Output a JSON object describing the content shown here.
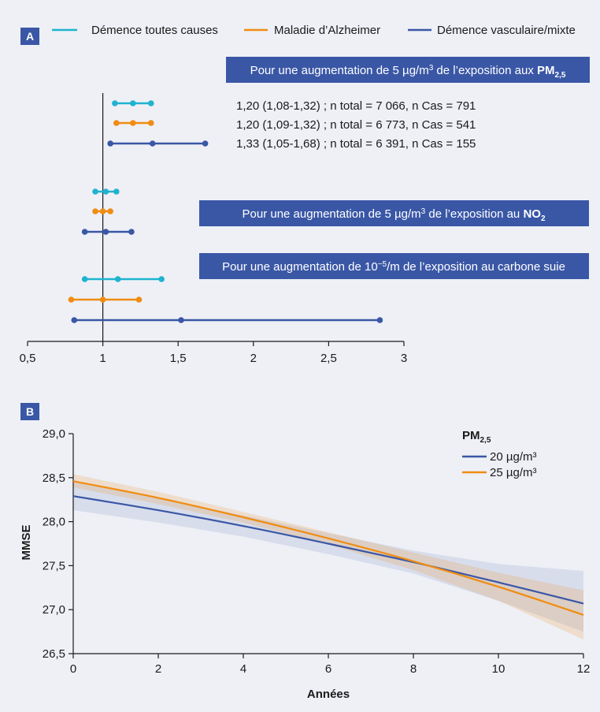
{
  "colors": {
    "all_cause": "#1fb3cf",
    "alzheimer": "#f08c12",
    "vascular": "#3a57a6",
    "banner": "#3a57a6",
    "badge": "#3a57a6",
    "background": "#eef0f6"
  },
  "panel_a": {
    "label": "A",
    "legend": [
      "Démence toutes causes",
      "Maladie d’Alzheimer",
      "Démence vasculaire/mixte"
    ],
    "banners": [
      {
        "prefix": "Pour une augmentation de 5 µg/m",
        "sup": "3",
        "mid": " de l’exposition aux ",
        "bold": "PM",
        "sub": "2,5"
      },
      {
        "prefix": "Pour une augmentation de 5 µg/m",
        "sup": "3",
        "mid": " de l’exposition au ",
        "bold": "NO",
        "sub": "2"
      },
      {
        "prefix": "Pour une augmentation de 10",
        "sup": "−5",
        "mid": "/m de l’exposition au carbone suie",
        "bold": "",
        "sub": ""
      }
    ],
    "annotations": [
      "1,20 (1,08-1,32) ;  n total = 7 066, n Cas = 791",
      "1,20 (1,09-1,32) ;  n total = 6 773, n Cas = 541",
      "1,33 (1,05-1,68) ;  n total = 6 391, n Cas = 155"
    ]
  },
  "panel_b": {
    "label": "B",
    "legend_title": "PM",
    "legend_title_sub": "2,5",
    "legend": [
      "20 µg/m³",
      "25 µg/m³"
    ],
    "xlabel": "Années",
    "ylabel": "MMSE"
  },
  "chart_data": [
    {
      "type": "forest",
      "xlim": [
        0.5,
        3
      ],
      "x_ticks": [
        "0,5",
        "1",
        "1,5",
        "2",
        "2,5",
        "3"
      ],
      "reference_line": 1,
      "groups": [
        {
          "exposure": "PM2,5",
          "rows": [
            {
              "series": "Démence toutes causes",
              "est": 1.2,
              "lo": 1.08,
              "hi": 1.32
            },
            {
              "series": "Maladie d’Alzheimer",
              "est": 1.2,
              "lo": 1.09,
              "hi": 1.32
            },
            {
              "series": "Démence vasculaire/mixte",
              "est": 1.33,
              "lo": 1.05,
              "hi": 1.68
            }
          ]
        },
        {
          "exposure": "NO2",
          "rows": [
            {
              "series": "Démence toutes causes",
              "est": 1.02,
              "lo": 0.95,
              "hi": 1.09
            },
            {
              "series": "Maladie d’Alzheimer",
              "est": 1.0,
              "lo": 0.95,
              "hi": 1.05
            },
            {
              "series": "Démence vasculaire/mixte",
              "est": 1.02,
              "lo": 0.88,
              "hi": 1.19
            }
          ]
        },
        {
          "exposure": "carbone suie",
          "rows": [
            {
              "series": "Démence toutes causes",
              "est": 1.1,
              "lo": 0.88,
              "hi": 1.39
            },
            {
              "series": "Maladie d’Alzheimer",
              "est": 1.0,
              "lo": 0.79,
              "hi": 1.24
            },
            {
              "series": "Démence vasculaire/mixte",
              "est": 1.52,
              "lo": 0.81,
              "hi": 2.84
            }
          ]
        }
      ]
    },
    {
      "type": "line",
      "xlim": [
        0,
        12
      ],
      "ylim": [
        26.5,
        29.0
      ],
      "x_ticks": [
        "0",
        "2",
        "4",
        "6",
        "8",
        "10",
        "12"
      ],
      "y_ticks": [
        "26,5",
        "27,0",
        "27,5",
        "28,0",
        "28,5",
        "29,0"
      ],
      "x": [
        0,
        2,
        4,
        6,
        8,
        10,
        12
      ],
      "series": [
        {
          "name": "20 µg/m³",
          "values": [
            28.29,
            28.13,
            27.95,
            27.75,
            27.54,
            27.31,
            27.07
          ],
          "lower": [
            28.13,
            27.99,
            27.83,
            27.63,
            27.41,
            27.1,
            26.75
          ],
          "upper": [
            28.45,
            28.27,
            28.07,
            27.87,
            27.67,
            27.52,
            27.44
          ]
        },
        {
          "name": "25 µg/m³",
          "values": [
            28.46,
            28.27,
            28.05,
            27.81,
            27.55,
            27.26,
            26.94
          ],
          "lower": [
            28.39,
            28.2,
            27.99,
            27.74,
            27.45,
            27.1,
            26.66
          ],
          "upper": [
            28.54,
            28.34,
            28.11,
            27.88,
            27.65,
            27.42,
            27.22
          ]
        }
      ]
    }
  ]
}
